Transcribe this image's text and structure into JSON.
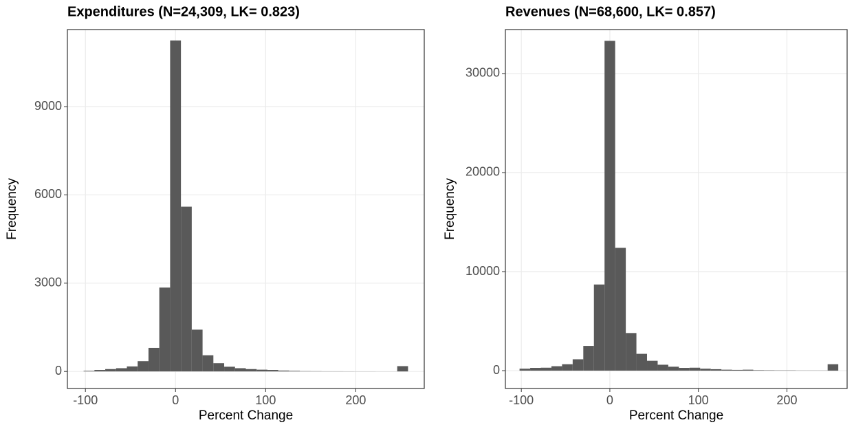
{
  "chart_data": [
    {
      "type": "histogram",
      "title": "Expenditures (N=24,309, LK= 0.823)",
      "x_label": "Percent Change",
      "y_label": "Frequency",
      "bins": [
        -102,
        -90,
        -78,
        -66,
        -54,
        -42,
        -30,
        -18,
        -6,
        6,
        18,
        30,
        42,
        54,
        66,
        78,
        90,
        102,
        114,
        126,
        138,
        150,
        162,
        174,
        186,
        198,
        210,
        222,
        234,
        246,
        258
      ],
      "values": [
        20,
        50,
        80,
        110,
        170,
        350,
        800,
        2850,
        11250,
        5600,
        1420,
        550,
        280,
        160,
        110,
        80,
        60,
        50,
        30,
        20,
        10,
        8,
        5,
        5,
        4,
        3,
        3,
        2,
        2,
        180
      ],
      "color": "#595959",
      "xlim": [
        -120,
        276
      ],
      "ylim": [
        -580,
        11620
      ],
      "xticks": [
        -100,
        0,
        100,
        200
      ],
      "yticks": [
        0,
        3000,
        6000,
        9000
      ],
      "grid": true
    },
    {
      "type": "histogram",
      "title": "Revenues (N=68,600, LK= 0.857)",
      "x_label": "Percent Change",
      "y_label": "Frequency",
      "bins": [
        -102,
        -90,
        -78,
        -66,
        -54,
        -42,
        -30,
        -18,
        -6,
        6,
        18,
        30,
        42,
        54,
        66,
        78,
        90,
        102,
        114,
        126,
        138,
        150,
        162,
        174,
        186,
        198,
        210,
        222,
        234,
        246,
        258
      ],
      "values": [
        200,
        280,
        300,
        450,
        650,
        1150,
        2500,
        8700,
        33300,
        12400,
        3800,
        1700,
        1000,
        600,
        400,
        280,
        300,
        200,
        150,
        100,
        80,
        100,
        50,
        40,
        30,
        30,
        20,
        20,
        20,
        650
      ],
      "color": "#595959",
      "xlim": [
        -118,
        268
      ],
      "ylim": [
        -1800,
        34440
      ],
      "xticks": [
        -100,
        0,
        100,
        200
      ],
      "yticks": [
        0,
        10000,
        20000,
        30000
      ],
      "grid": true
    }
  ]
}
